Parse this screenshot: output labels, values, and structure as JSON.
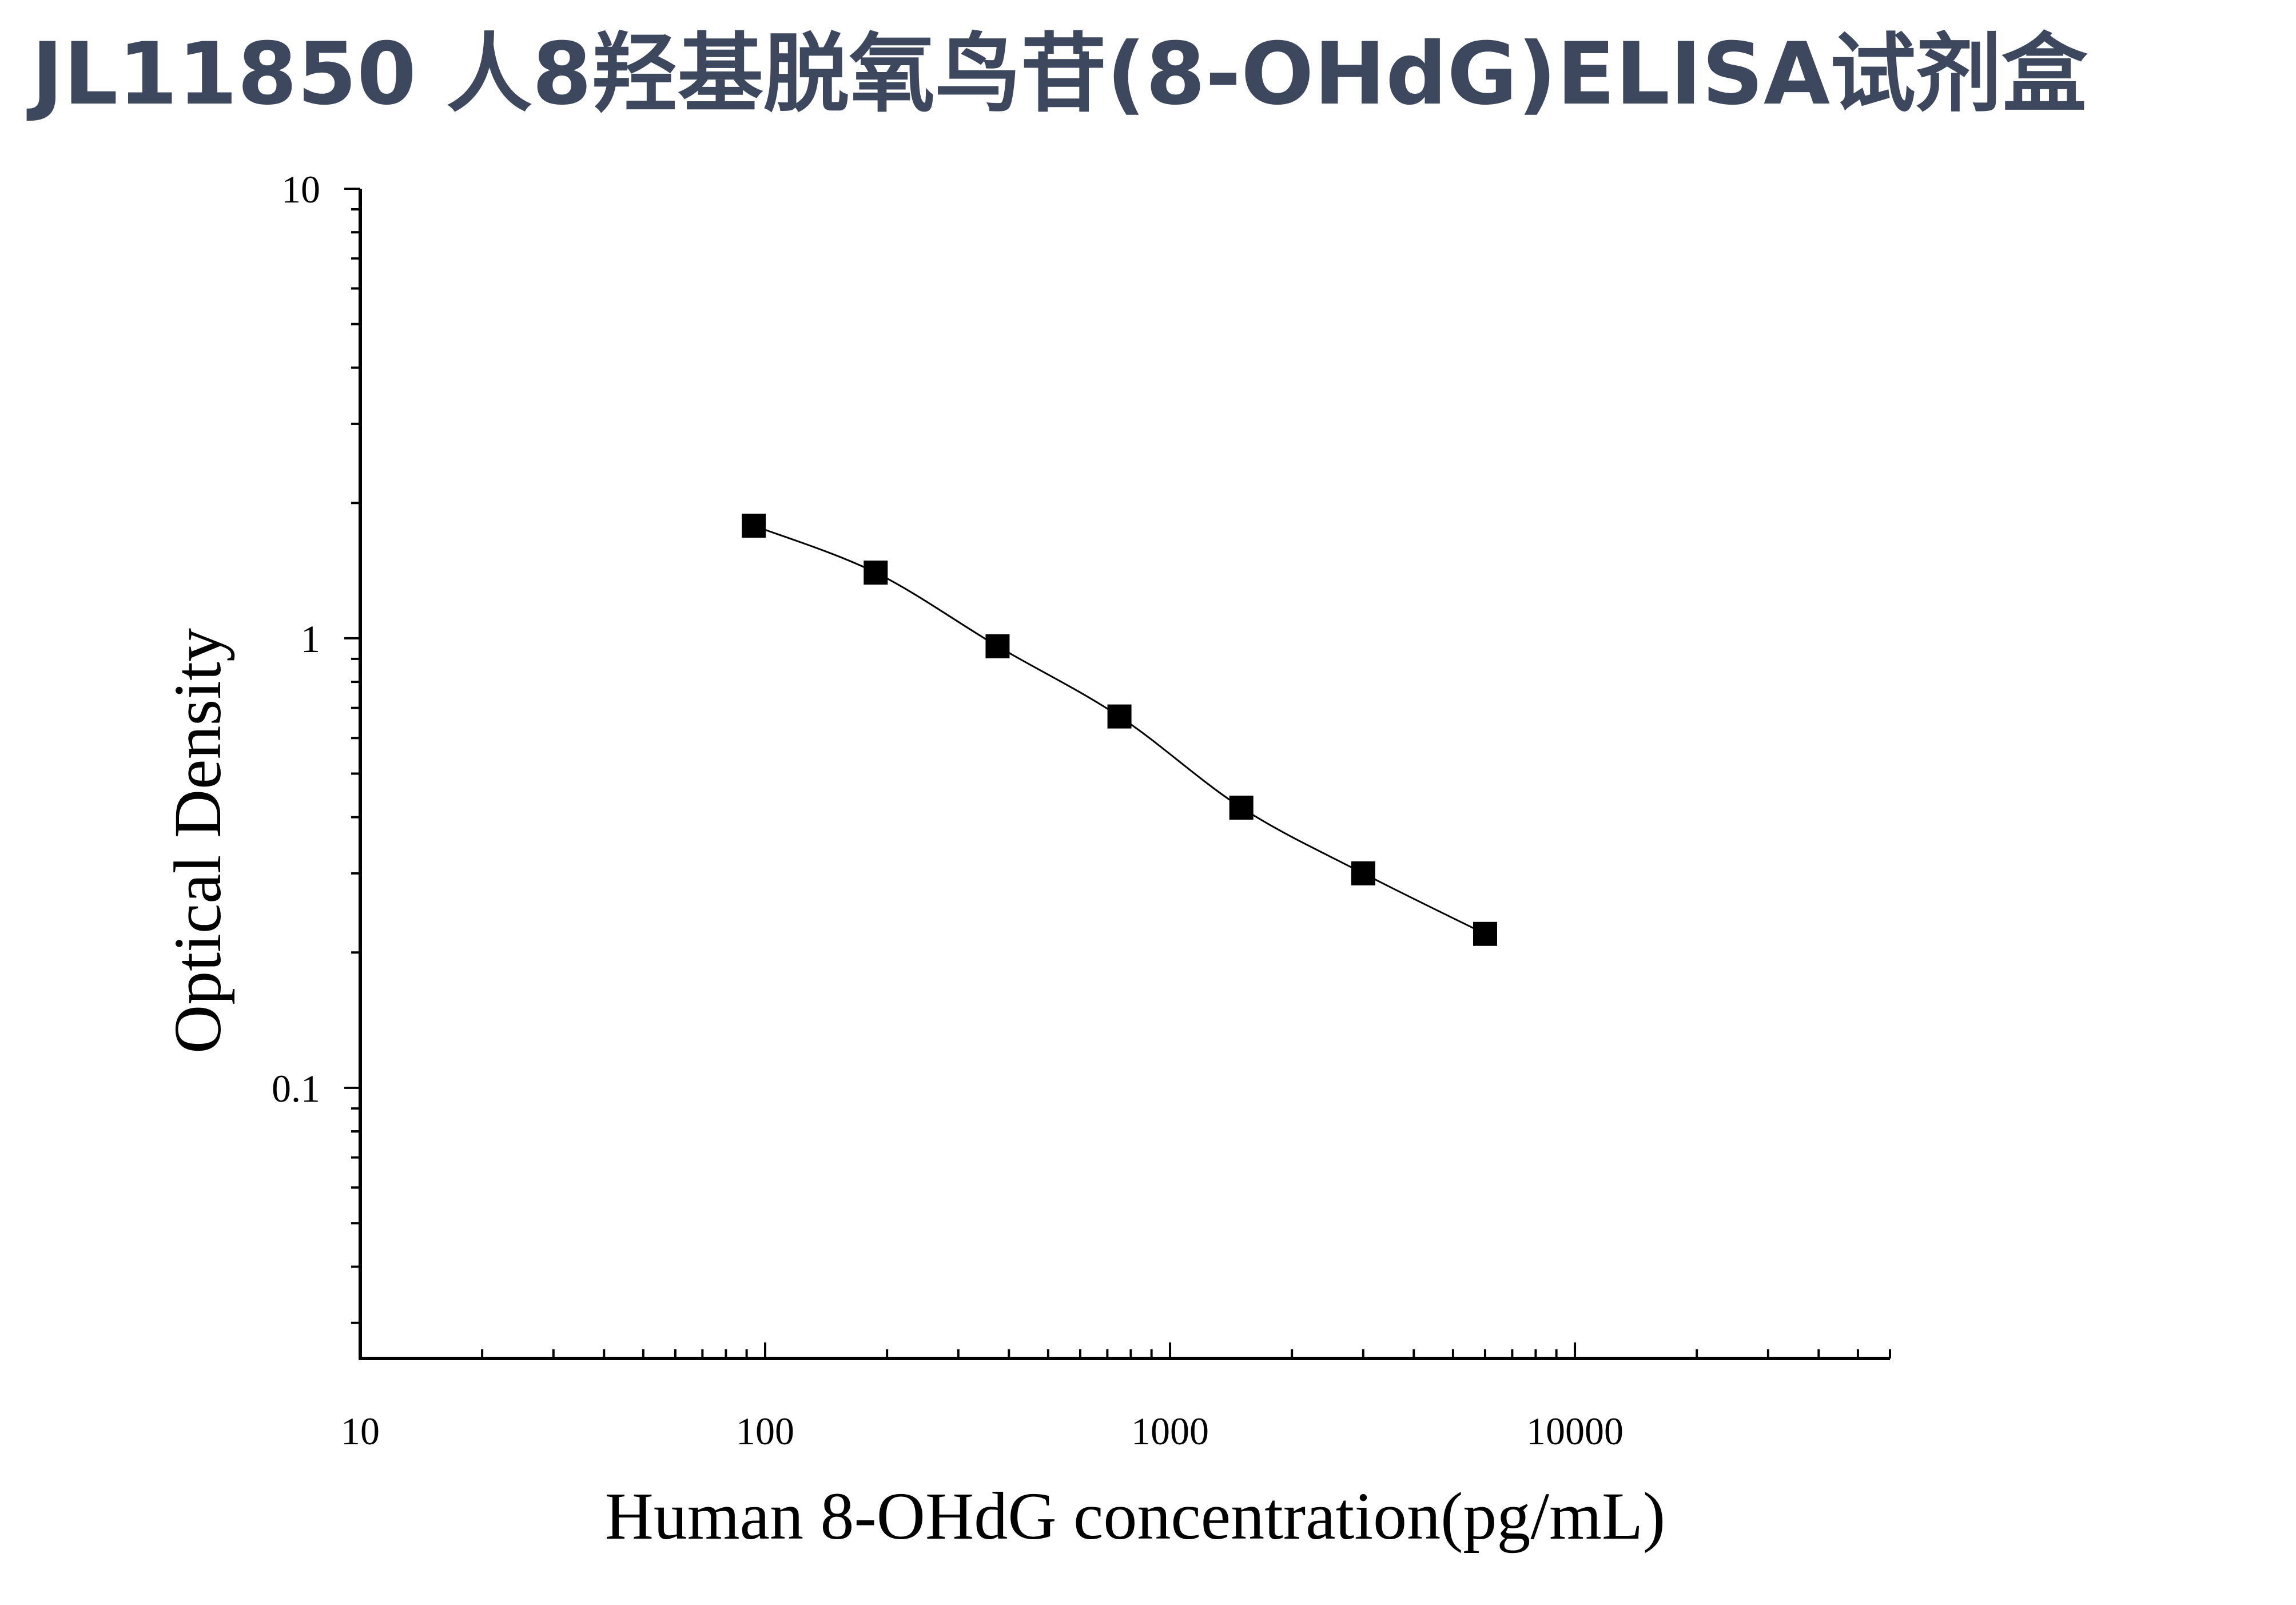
{
  "page": {
    "title": "JL11850 人8羟基脱氧鸟苷(8-OHdG)ELISA试剂盒"
  },
  "chart_data": {
    "type": "scatter",
    "x_scale": "log",
    "y_scale": "log",
    "xlim": [
      10,
      60000
    ],
    "ylim": [
      0.025,
      10
    ],
    "xlabel": "Human 8-OHdG concentration(pg/mL)",
    "ylabel": "Optical Density",
    "x_tick_labels": [
      "10",
      "100",
      "1000",
      "10000"
    ],
    "y_tick_labels": [
      "0.1",
      "1",
      "10"
    ],
    "grid": false,
    "legend": "none",
    "marker": "square",
    "marker_color": "#000000",
    "fit_curve": true,
    "series": [
      {
        "x": [
          93.75,
          187.5,
          375,
          750,
          1500,
          3000,
          6000
        ],
        "y": [
          1.78,
          1.4,
          0.96,
          0.67,
          0.42,
          0.3,
          0.22
        ]
      }
    ]
  }
}
